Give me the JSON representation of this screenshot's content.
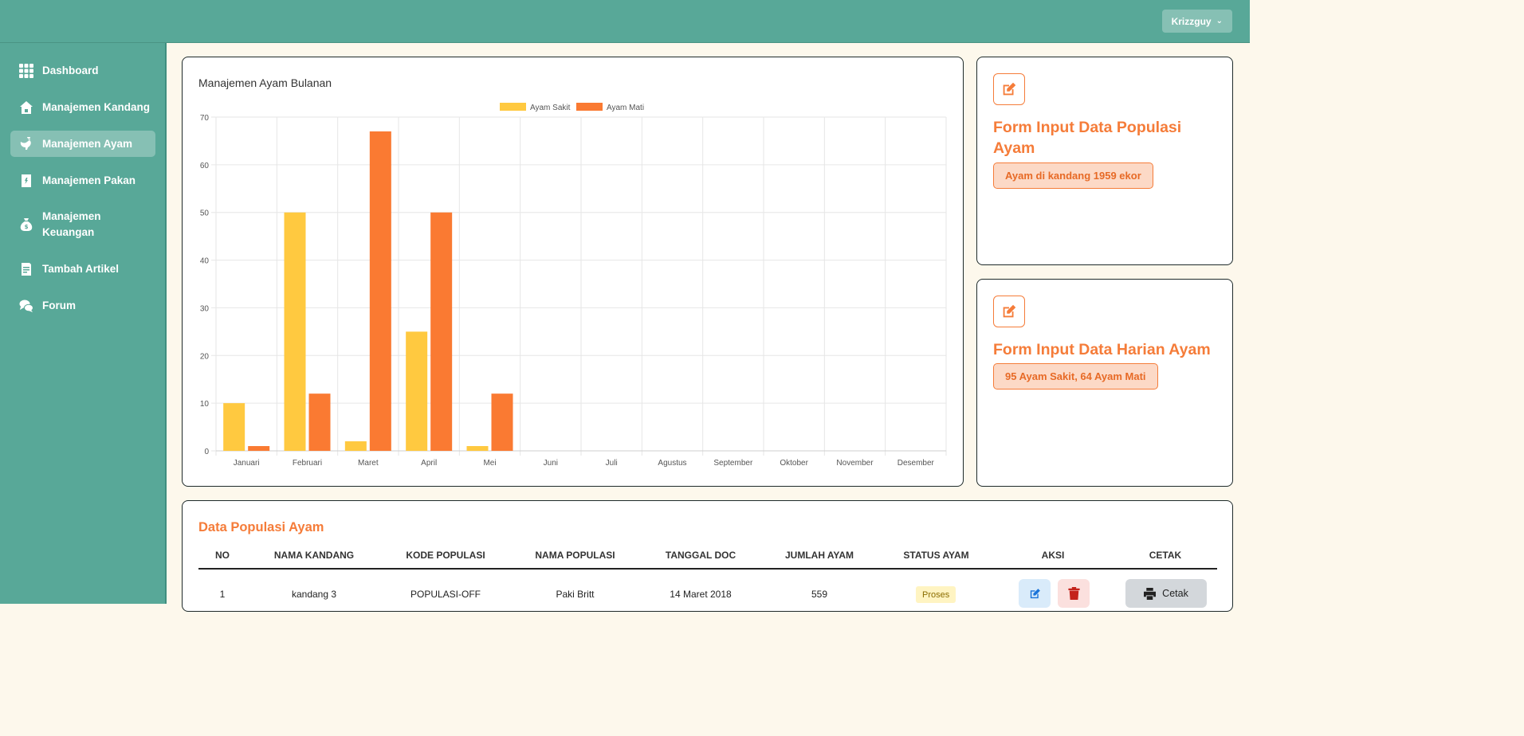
{
  "header": {
    "user": "Krizzguy"
  },
  "sidebar": {
    "items": [
      {
        "label": "Dashboard",
        "icon": "grid-icon",
        "active": false
      },
      {
        "label": "Manajemen Kandang",
        "icon": "house-icon",
        "active": false
      },
      {
        "label": "Manajemen Ayam",
        "icon": "chicken-icon",
        "active": true
      },
      {
        "label": "Manajemen Pakan",
        "icon": "feed-bag-icon",
        "active": false
      },
      {
        "label": "Manajemen Keuangan",
        "icon": "money-bag-icon",
        "active": false
      },
      {
        "label": "Tambah Artikel",
        "icon": "article-icon",
        "active": false
      },
      {
        "label": "Forum",
        "icon": "chat-icon",
        "active": false
      }
    ]
  },
  "chart": {
    "title": "Manajemen Ayam Bulanan"
  },
  "chart_data": {
    "type": "bar",
    "categories": [
      "Januari",
      "Februari",
      "Maret",
      "April",
      "Mei",
      "Juni",
      "Juli",
      "Agustus",
      "September",
      "Oktober",
      "November",
      "Desember"
    ],
    "series": [
      {
        "name": "Ayam Sakit",
        "color": "#ffc940",
        "values": [
          10,
          50,
          2,
          25,
          1,
          0,
          0,
          0,
          0,
          0,
          0,
          0
        ]
      },
      {
        "name": "Ayam Mati",
        "color": "#fa7a32",
        "values": [
          1,
          12,
          67,
          50,
          12,
          0,
          0,
          0,
          0,
          0,
          0,
          0
        ]
      }
    ],
    "ylim": [
      0,
      70
    ],
    "yticks": [
      0,
      10,
      20,
      30,
      40,
      50,
      60,
      70
    ],
    "grid": true,
    "legend": "top-center"
  },
  "forms": {
    "populasi": {
      "title": "Form Input Data Populasi Ayam",
      "badge": "Ayam di kandang 1959 ekor"
    },
    "harian": {
      "title": "Form Input Data Harian Ayam",
      "badge": "95 Ayam Sakit, 64 Ayam Mati"
    }
  },
  "table": {
    "title": "Data Populasi Ayam",
    "headers": [
      "NO",
      "NAMA KANDANG",
      "KODE POPULASI",
      "NAMA POPULASI",
      "TANGGAL DOC",
      "JUMLAH AYAM",
      "STATUS AYAM",
      "AKSI",
      "CETAK"
    ],
    "rows": [
      {
        "no": "1",
        "kandang": "kandang 3",
        "kode": "POPULASI-OFF",
        "nama": "Paki Britt",
        "tanggal": "14 Maret 2018",
        "jumlah": "559",
        "status": "Proses",
        "cetak": "Cetak"
      }
    ]
  }
}
